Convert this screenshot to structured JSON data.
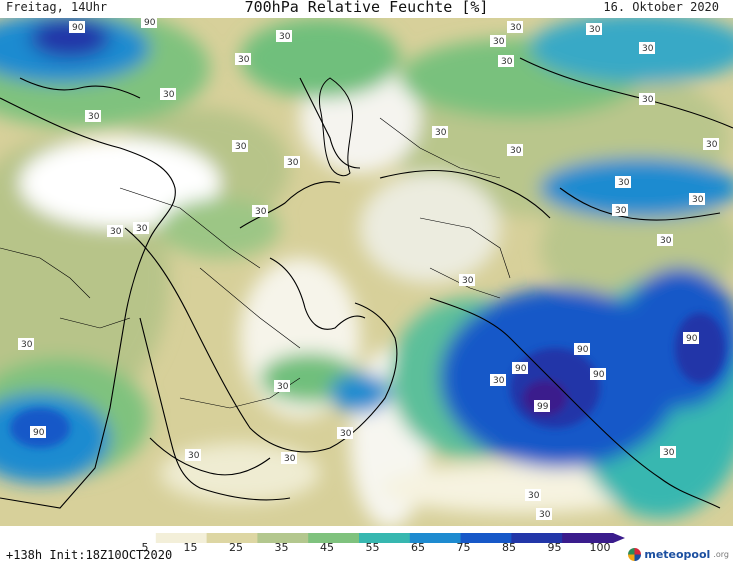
{
  "header": {
    "left": "Freitag, 14Uhr",
    "title": "700hPa Relative Feuchte [%]",
    "right": "16. Oktober 2020"
  },
  "colorbar": {
    "ticks": [
      "5",
      "15",
      "25",
      "35",
      "45",
      "55",
      "65",
      "75",
      "85",
      "95",
      "100"
    ],
    "colors": [
      "#ffffff",
      "#f3efd9",
      "#ddd6a3",
      "#b3c78e",
      "#7fc27e",
      "#37b7b0",
      "#1e8bd0",
      "#1758c8",
      "#2236a8",
      "#3a1c8c"
    ]
  },
  "footer": {
    "run_info": "+138h Init:18Z10OCT2020",
    "logo_name": "meteopool",
    "logo_tld": ".org"
  },
  "labels": {
    "l30": "30",
    "l90": "90",
    "l99": "99"
  }
}
